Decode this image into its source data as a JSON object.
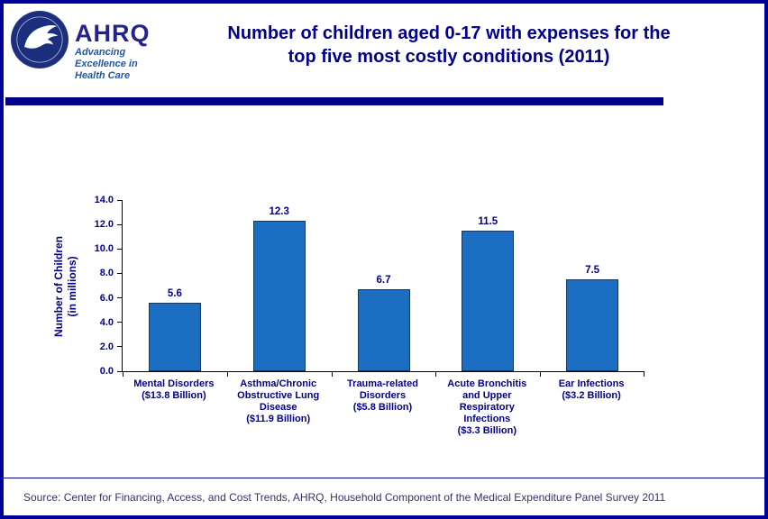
{
  "page": {
    "border_color": "#00009A",
    "background": "#FFFFFF",
    "accent_navy": "#00008B"
  },
  "header": {
    "title_line1": "Number of children aged 0-17 with expenses for the",
    "title_line2": "top five most costly conditions (2011)",
    "logo": {
      "hhs_icon": "hhs-eagle-seal",
      "org_abbrev": "AHRQ",
      "tagline_line1": "Advancing",
      "tagline_line2": "Excellence in",
      "tagline_line3": "Health Care"
    }
  },
  "chart_data": {
    "type": "bar",
    "title": "Number of children aged 0-17 with expenses for the top five most costly conditions (2011)",
    "categories": [
      "Mental Disorders\n($13.8 Billion)",
      "Asthma/Chronic\nObstructive Lung\nDisease\n($11.9 Billion)",
      "Trauma-related\nDisorders\n($5.8 Billion)",
      "Acute Bronchitis\nand Upper\nRespiratory\nInfections\n($3.3 Billion)",
      "Ear Infections\n($3.2 Billion)"
    ],
    "values": [
      5.6,
      12.3,
      6.7,
      11.5,
      7.5
    ],
    "value_labels": [
      "5.6",
      "12.3",
      "6.7",
      "11.5",
      "7.5"
    ],
    "xlabel": "",
    "ylabel_line1": "Number of Children",
    "ylabel_line2": "(in millions)",
    "ylim": [
      0,
      14
    ],
    "ytick_step": 2,
    "yticks": [
      "0.0",
      "2.0",
      "4.0",
      "6.0",
      "8.0",
      "10.0",
      "12.0",
      "14.0"
    ],
    "grid": false,
    "legend": "none",
    "bar_color": "#1B6EC2",
    "bar_border_color": "#17375E"
  },
  "footer": {
    "source": "Source: Center for Financing, Access, and Cost Trends, AHRQ, Household Component of the Medical Expenditure Panel Survey 2011"
  }
}
